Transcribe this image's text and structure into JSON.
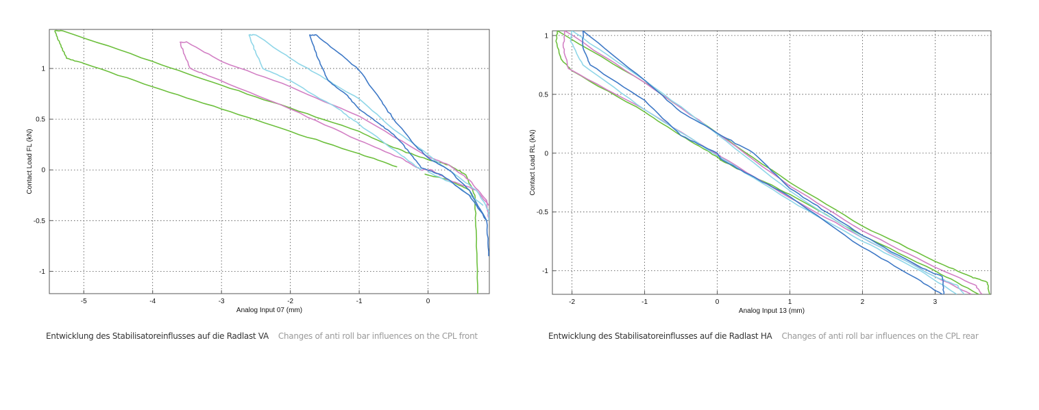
{
  "colors": {
    "green": "#6cbf3c",
    "pink": "#d27fc4",
    "cyan": "#8fd6e8",
    "blue": "#3d78c6",
    "grid": "#444444",
    "axis": "#555555"
  },
  "captions": [
    {
      "de": "Entwicklung des Stabilisatoreinflusses auf die Radlast VA",
      "en": "Changes of anti roll bar influences on the CPL front"
    },
    {
      "de": "Entwicklung des Stabilisatoreinflusses auf die Radlast HA",
      "en": "Changes of anti roll bar influences on the CPL rear"
    }
  ],
  "chart_data": [
    {
      "type": "line",
      "title": "",
      "xlabel": "Analog Input 07 (mm)",
      "ylabel": "Contact Load FL (kN)",
      "xlim": [
        -5.5,
        0.89
      ],
      "ylim": [
        -1.22,
        1.385
      ],
      "xticks": [
        -5,
        -4,
        -3,
        -2,
        -1,
        0
      ],
      "yticks": [
        -1,
        -0.5,
        0,
        0.5,
        1
      ],
      "grid": true,
      "series": [
        {
          "name": "green",
          "color": "green",
          "points": [
            [
              -0.45,
              0.03
            ],
            [
              -1,
              0.16
            ],
            [
              -2,
              0.38
            ],
            [
              -3,
              0.6
            ],
            [
              -4,
              0.82
            ],
            [
              -5,
              1.05
            ],
            [
              -5.25,
              1.1
            ],
            [
              -5.35,
              1.25
            ],
            [
              -5.42,
              1.37
            ],
            [
              -5.3,
              1.37
            ],
            [
              -4,
              1.07
            ],
            [
              -3,
              0.835
            ],
            [
              -2,
              0.61
            ],
            [
              -1,
              0.38
            ],
            [
              -0.5,
              0.22
            ],
            [
              0,
              0.1
            ],
            [
              0.3,
              0.05
            ],
            [
              0.55,
              -0.05
            ],
            [
              0.68,
              -0.25
            ],
            [
              0.7,
              -0.6
            ],
            [
              0.72,
              -1.22
            ]
          ]
        },
        {
          "name": "green-return",
          "color": "green",
          "points": [
            [
              -0.05,
              -0.04
            ],
            [
              0.3,
              -0.1
            ],
            [
              0.6,
              -0.2
            ],
            [
              0.68,
              -0.3
            ]
          ]
        },
        {
          "name": "pink",
          "color": "pink",
          "points": [
            [
              0.88,
              -0.35
            ],
            [
              0.7,
              -0.2
            ],
            [
              0.3,
              -0.1
            ],
            [
              0.05,
              0.0
            ],
            [
              -0.1,
              0.0
            ],
            [
              -0.4,
              0.12
            ],
            [
              -1,
              0.29
            ],
            [
              -2,
              0.6
            ],
            [
              -3.2,
              0.93
            ],
            [
              -3.45,
              1.0
            ],
            [
              -3.55,
              1.15
            ],
            [
              -3.6,
              1.26
            ],
            [
              -3.5,
              1.26
            ],
            [
              -3,
              1.07
            ],
            [
              -2,
              0.82
            ],
            [
              -1,
              0.53
            ],
            [
              0,
              0.13
            ],
            [
              0.3,
              0.05
            ],
            [
              0.6,
              -0.1
            ],
            [
              0.85,
              -0.3
            ],
            [
              0.88,
              -0.5
            ]
          ]
        },
        {
          "name": "cyan",
          "color": "cyan",
          "points": [
            [
              -0.1,
              0.0
            ],
            [
              -0.2,
              0.05
            ],
            [
              -0.5,
              0.2
            ],
            [
              -1,
              0.45
            ],
            [
              -1.3,
              0.6
            ],
            [
              -2,
              0.88
            ],
            [
              -2.4,
              1.0
            ],
            [
              -2.5,
              1.15
            ],
            [
              -2.6,
              1.33
            ],
            [
              -2.5,
              1.33
            ],
            [
              -2,
              1.1
            ],
            [
              -1.5,
              0.9
            ],
            [
              -1,
              0.7
            ],
            [
              -0.5,
              0.4
            ],
            [
              0,
              0.15
            ],
            [
              0.4,
              -0.05
            ],
            [
              0.7,
              -0.2
            ],
            [
              0.88,
              -0.4
            ],
            [
              0.88,
              -0.5
            ]
          ]
        },
        {
          "name": "cyan-return",
          "color": "cyan",
          "points": [
            [
              0,
              -0.02
            ],
            [
              0.4,
              -0.15
            ],
            [
              0.8,
              -0.35
            ]
          ]
        },
        {
          "name": "blue",
          "color": "blue",
          "points": [
            [
              0.85,
              -0.5
            ],
            [
              0.6,
              -0.25
            ],
            [
              0.2,
              -0.05
            ],
            [
              -0.1,
              0.02
            ],
            [
              -0.3,
              0.2
            ],
            [
              -0.5,
              0.35
            ],
            [
              -0.7,
              0.45
            ],
            [
              -1,
              0.6
            ],
            [
              -1.2,
              0.75
            ],
            [
              -1.45,
              0.88
            ],
            [
              -1.6,
              1.1
            ],
            [
              -1.72,
              1.33
            ],
            [
              -1.62,
              1.33
            ],
            [
              -1.2,
              1.1
            ],
            [
              -1,
              0.98
            ],
            [
              -0.7,
              0.7
            ],
            [
              -0.5,
              0.5
            ],
            [
              -0.2,
              0.25
            ],
            [
              0,
              0.12
            ],
            [
              0.3,
              0.0
            ],
            [
              0.6,
              -0.2
            ],
            [
              0.85,
              -0.5
            ],
            [
              0.88,
              -0.85
            ]
          ]
        }
      ]
    },
    {
      "type": "line",
      "title": "",
      "xlabel": "Analog Input 13 (mm)",
      "ylabel": "Contact Load RL (kN)",
      "xlim": [
        -2.27,
        3.77
      ],
      "ylim": [
        -1.2,
        1.04
      ],
      "xticks": [
        -2,
        -1,
        0,
        1,
        2,
        3
      ],
      "yticks": [
        -1,
        -0.5,
        0,
        0.5,
        1
      ],
      "grid": true,
      "series": [
        {
          "name": "green",
          "color": "green",
          "points": [
            [
              3.6,
              -1.2
            ],
            [
              3,
              -1.0
            ],
            [
              2,
              -0.7
            ],
            [
              1,
              -0.35
            ],
            [
              0.5,
              -0.2
            ],
            [
              0.05,
              -0.06
            ],
            [
              0,
              -0.03
            ],
            [
              -0.5,
              0.15
            ],
            [
              -1,
              0.35
            ],
            [
              -2,
              0.7
            ],
            [
              -2.15,
              0.8
            ],
            [
              -2.22,
              0.95
            ],
            [
              -2.2,
              1.04
            ],
            [
              -1,
              0.6
            ],
            [
              0,
              0.17
            ],
            [
              1,
              -0.25
            ],
            [
              2,
              -0.62
            ],
            [
              3,
              -0.92
            ],
            [
              3.5,
              -1.05
            ],
            [
              3.72,
              -1.1
            ],
            [
              3.75,
              -1.2
            ]
          ]
        },
        {
          "name": "pink",
          "color": "pink",
          "points": [
            [
              3.5,
              -1.2
            ],
            [
              3,
              -1.05
            ],
            [
              2,
              -0.72
            ],
            [
              1,
              -0.38
            ],
            [
              0.05,
              -0.03
            ],
            [
              0,
              -0.01
            ],
            [
              -1,
              0.37
            ],
            [
              -2.05,
              0.72
            ],
            [
              -2.12,
              0.9
            ],
            [
              -2.1,
              1.04
            ],
            [
              -1,
              0.6
            ],
            [
              0,
              0.17
            ],
            [
              1,
              -0.28
            ],
            [
              2,
              -0.66
            ],
            [
              3,
              -0.97
            ],
            [
              3.55,
              -1.12
            ],
            [
              3.65,
              -1.2
            ]
          ]
        },
        {
          "name": "cyan",
          "color": "cyan",
          "points": [
            [
              3.3,
              -1.2
            ],
            [
              2.8,
              -1.0
            ],
            [
              2,
              -0.75
            ],
            [
              1,
              -0.4
            ],
            [
              0,
              -0.02
            ],
            [
              -1,
              0.37
            ],
            [
              -1.85,
              0.75
            ],
            [
              -2.02,
              0.95
            ],
            [
              -2.0,
              1.04
            ],
            [
              -1,
              0.62
            ],
            [
              0,
              0.16
            ],
            [
              1,
              -0.32
            ],
            [
              2,
              -0.72
            ],
            [
              3,
              -1.05
            ],
            [
              3.3,
              -1.12
            ],
            [
              3.4,
              -1.2
            ]
          ]
        },
        {
          "name": "blue",
          "color": "blue",
          "points": [
            [
              3.1,
              -1.2
            ],
            [
              2.7,
              -1.05
            ],
            [
              2,
              -0.8
            ],
            [
              1,
              -0.37
            ],
            [
              0.5,
              -0.2
            ],
            [
              0.05,
              -0.05
            ],
            [
              0,
              0.0
            ],
            [
              -0.5,
              0.15
            ],
            [
              -1,
              0.45
            ],
            [
              -1.75,
              0.75
            ],
            [
              -1.85,
              0.9
            ],
            [
              -1.85,
              1.04
            ],
            [
              -1,
              0.62
            ],
            [
              -0.5,
              0.35
            ],
            [
              0,
              0.17
            ],
            [
              0.5,
              0.0
            ],
            [
              1,
              -0.3
            ],
            [
              1.5,
              -0.5
            ],
            [
              2,
              -0.7
            ],
            [
              2.8,
              -0.97
            ],
            [
              3.1,
              -1.05
            ],
            [
              3.12,
              -1.2
            ]
          ]
        }
      ]
    }
  ]
}
